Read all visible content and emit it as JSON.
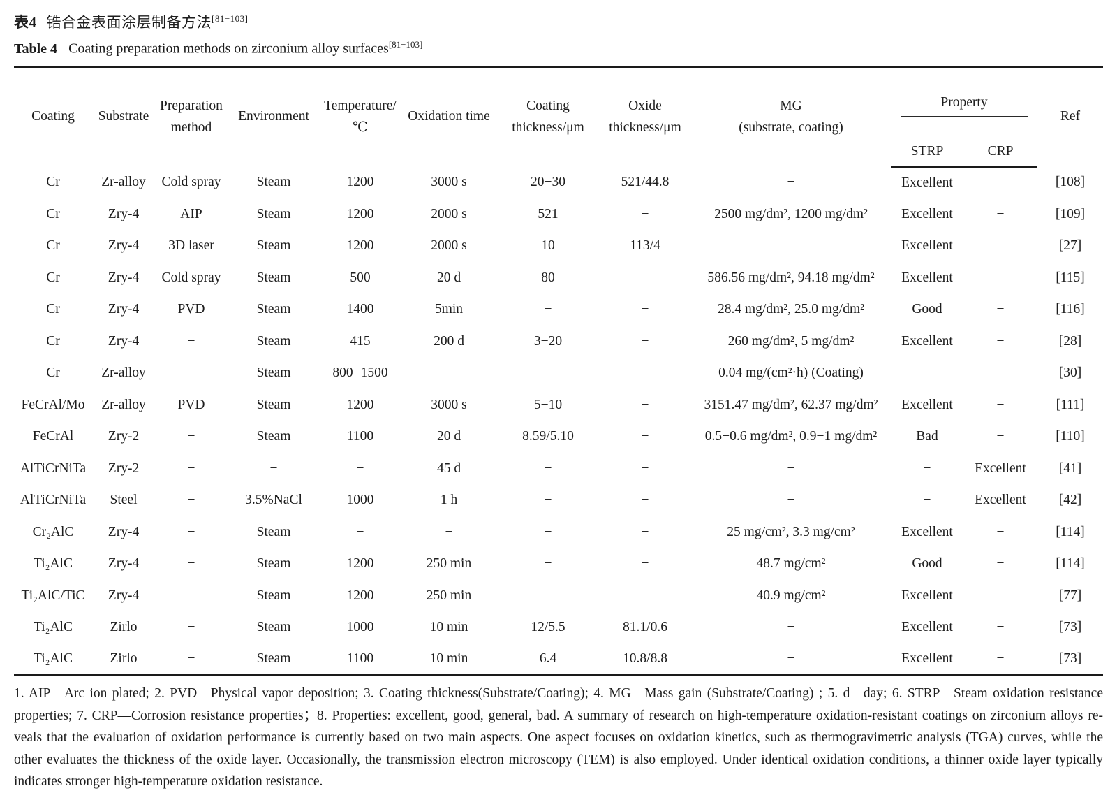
{
  "page": {
    "title_cn": {
      "label": "表4",
      "text": "锆合金表面涂层制备方法",
      "sup": "[81−103]"
    },
    "title_en": {
      "label": "Table 4",
      "text": "Coating preparation methods on zirconium alloy surfaces",
      "sup": "[81−103]"
    }
  },
  "table": {
    "headers": {
      "coating": "Coating",
      "substrate": "Substrate",
      "preparation_method": "Preparation\nmethod",
      "environment": "Environment",
      "temperature": "Temperature/\n℃",
      "oxidation_time": "Oxidation time",
      "coating_thickness": "Coating\nthickness/μm",
      "oxide_thickness": "Oxide\nthickness/μm",
      "mg": "MG\n(substrate, coating)",
      "property": "Property",
      "strp": "STRP",
      "crp": "CRP",
      "ref": "Ref"
    },
    "rows": [
      [
        "Cr",
        "Zr-alloy",
        "Cold spray",
        "Steam",
        "1200",
        "3000 s",
        "20−30",
        "521/44.8",
        "−",
        "Excellent",
        "−",
        "[108]"
      ],
      [
        "Cr",
        "Zry-4",
        "AIP",
        "Steam",
        "1200",
        "2000 s",
        "521",
        "−",
        "2500 mg/dm², 1200 mg/dm²",
        "Excellent",
        "−",
        "[109]"
      ],
      [
        "Cr",
        "Zry-4",
        "3D laser",
        "Steam",
        "1200",
        "2000 s",
        "10",
        "113/4",
        "−",
        "Excellent",
        "−",
        "[27]"
      ],
      [
        "Cr",
        "Zry-4",
        "Cold spray",
        "Steam",
        "500",
        "20 d",
        "80",
        "−",
        "586.56 mg/dm², 94.18 mg/dm²",
        "Excellent",
        "−",
        "[115]"
      ],
      [
        "Cr",
        "Zry-4",
        "PVD",
        "Steam",
        "1400",
        "5min",
        "−",
        "−",
        "28.4 mg/dm², 25.0 mg/dm²",
        "Good",
        "−",
        "[116]"
      ],
      [
        "Cr",
        "Zry-4",
        "−",
        "Steam",
        "415",
        "200 d",
        "3−20",
        "−",
        "260 mg/dm², 5 mg/dm²",
        "Excellent",
        "−",
        "[28]"
      ],
      [
        "Cr",
        "Zr-alloy",
        "−",
        "Steam",
        "800−1500",
        "−",
        "−",
        "−",
        "0.04 mg/(cm²·h) (Coating)",
        "−",
        "−",
        "[30]"
      ],
      [
        "FeCrAl/Mo",
        "Zr-alloy",
        "PVD",
        "Steam",
        "1200",
        "3000 s",
        "5−10",
        "−",
        "3151.47 mg/dm², 62.37 mg/dm²",
        "Excellent",
        "−",
        "[111]"
      ],
      [
        "FeCrAl",
        "Zry-2",
        "−",
        "Steam",
        "1100",
        "20 d",
        "8.59/5.10",
        "−",
        "0.5−0.6 mg/dm², 0.9−1 mg/dm²",
        "Bad",
        "−",
        "[110]"
      ],
      [
        "AlTiCrNiTa",
        "Zry-2",
        "−",
        "−",
        "−",
        "45 d",
        "−",
        "−",
        "−",
        "−",
        "Excellent",
        "[41]"
      ],
      [
        "AlTiCrNiTa",
        "Steel",
        "−",
        "3.5%NaCl",
        "1000",
        "1 h",
        "−",
        "−",
        "−",
        "−",
        "Excellent",
        "[42]"
      ],
      [
        "Cr₂AlC",
        "Zry-4",
        "−",
        "Steam",
        "−",
        "−",
        "−",
        "−",
        "25 mg/cm², 3.3 mg/cm²",
        "Excellent",
        "−",
        "[114]"
      ],
      [
        "Ti₂AlC",
        "Zry-4",
        "−",
        "Steam",
        "1200",
        "250 min",
        "−",
        "−",
        "48.7 mg/cm²",
        "Good",
        "−",
        "[114]"
      ],
      [
        "Ti₂AlC/TiC",
        "Zry-4",
        "−",
        "Steam",
        "1200",
        "250 min",
        "−",
        "−",
        "40.9 mg/cm²",
        "Excellent",
        "−",
        "[77]"
      ],
      [
        "Ti₂AlC",
        "Zirlo",
        "−",
        "Steam",
        "1000",
        "10 min",
        "12/5.5",
        "81.1/0.6",
        "−",
        "Excellent",
        "−",
        "[73]"
      ],
      [
        "Ti₂AlC",
        "Zirlo",
        "−",
        "Steam",
        "1100",
        "10 min",
        "6.4",
        "10.8/8.8",
        "−",
        "Excellent",
        "−",
        "[73]"
      ]
    ]
  },
  "footnote": {
    "lines": [
      "1. AIP—Arc ion plated; 2. PVD—Physical vapor deposition; 3. Coating thickness(Substrate/Coating); 4. MG—Mass gain (Substrate/Coating) ; 5. d—day; 6. STRP—Steam oxidation resistance",
      "properties; 7. CRP—Corrosion resistance properties；8. Properties: excellent, good, general, bad. A summary of research on high-temperature oxidation-resistant coatings on zirconium alloys re-",
      "veals that the evaluation of oxidation performance is currently based on two main aspects. One aspect focuses on oxidation kinetics, such as thermogravimetric analysis (TGA) curves, while the",
      "other evaluates the thickness of the oxide layer. Occasionally, the transmission electron microscopy (TEM) is also employed. Under identical oxidation conditions, a thinner oxide layer typically",
      "indicates stronger high-temperature oxidation resistance."
    ]
  }
}
